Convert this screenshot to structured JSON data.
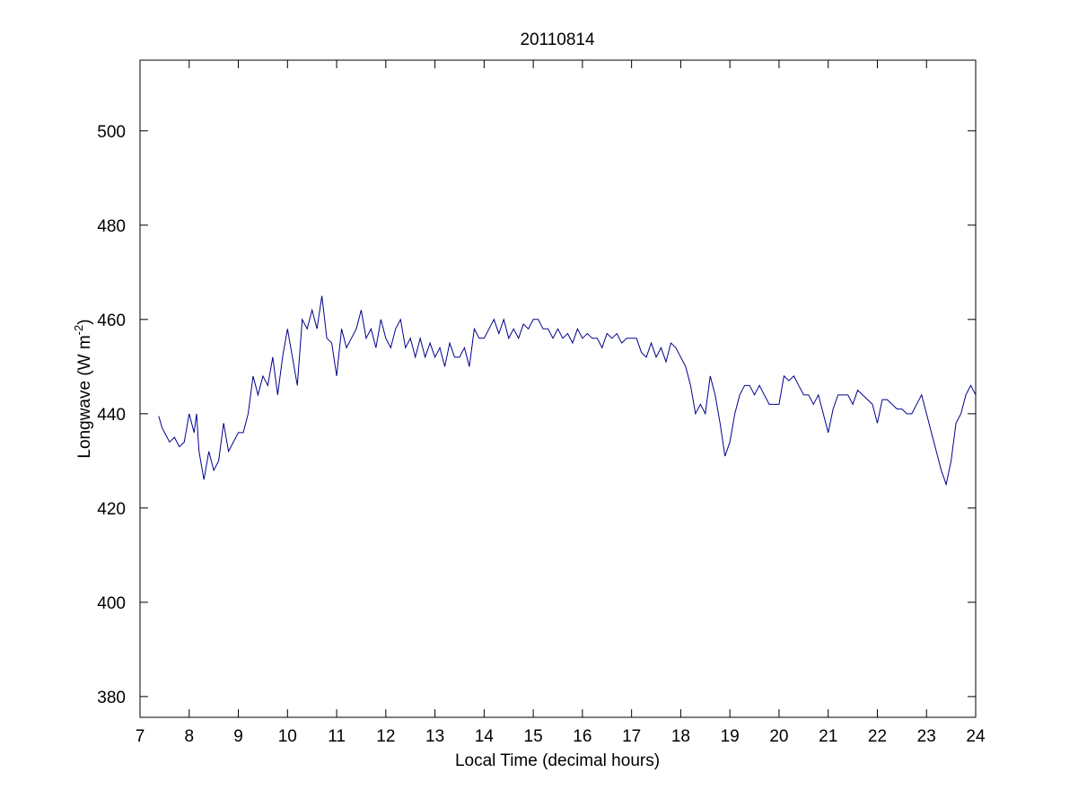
{
  "chart_data": {
    "type": "line",
    "title": "20110814",
    "xlabel": "Local Time (decimal hours)",
    "ylabel": {
      "text": "Longwave (W m",
      "superscript": "-2",
      "suffix": ")"
    },
    "xlim": [
      7,
      24
    ],
    "ylim": [
      375.6,
      515
    ],
    "xticks": [
      7,
      8,
      9,
      10,
      11,
      12,
      13,
      14,
      15,
      16,
      17,
      18,
      19,
      20,
      21,
      22,
      23,
      24
    ],
    "yticks": [
      380,
      400,
      420,
      440,
      460,
      480,
      500
    ],
    "grid": false,
    "series": [
      {
        "color": "#00008b",
        "x": [
          7.38,
          7.45,
          7.5,
          7.6,
          7.7,
          7.8,
          7.9,
          8.0,
          8.1,
          8.15,
          8.2,
          8.3,
          8.4,
          8.5,
          8.6,
          8.7,
          8.8,
          8.9,
          9.0,
          9.1,
          9.2,
          9.3,
          9.4,
          9.5,
          9.6,
          9.7,
          9.8,
          9.9,
          10.0,
          10.1,
          10.2,
          10.3,
          10.4,
          10.5,
          10.6,
          10.7,
          10.8,
          10.9,
          11.0,
          11.1,
          11.2,
          11.3,
          11.4,
          11.5,
          11.6,
          11.7,
          11.8,
          11.9,
          12.0,
          12.1,
          12.2,
          12.3,
          12.4,
          12.5,
          12.6,
          12.7,
          12.8,
          12.9,
          13.0,
          13.1,
          13.2,
          13.3,
          13.4,
          13.5,
          13.6,
          13.7,
          13.8,
          13.9,
          14.0,
          14.1,
          14.2,
          14.3,
          14.4,
          14.5,
          14.6,
          14.7,
          14.8,
          14.9,
          15.0,
          15.1,
          15.2,
          15.3,
          15.4,
          15.5,
          15.6,
          15.7,
          15.8,
          15.9,
          16.0,
          16.1,
          16.2,
          16.3,
          16.4,
          16.5,
          16.6,
          16.7,
          16.8,
          16.9,
          17.0,
          17.1,
          17.2,
          17.3,
          17.4,
          17.5,
          17.6,
          17.7,
          17.8,
          17.9,
          18.0,
          18.1,
          18.2,
          18.3,
          18.4,
          18.5,
          18.6,
          18.7,
          18.8,
          18.9,
          19.0,
          19.1,
          19.2,
          19.3,
          19.4,
          19.5,
          19.6,
          19.7,
          19.8,
          19.9,
          20.0,
          20.1,
          20.2,
          20.3,
          20.4,
          20.5,
          20.6,
          20.7,
          20.8,
          20.9,
          21.0,
          21.1,
          21.2,
          21.3,
          21.4,
          21.5,
          21.6,
          21.7,
          21.8,
          21.9,
          22.0,
          22.1,
          22.2,
          22.3,
          22.4,
          22.5,
          22.6,
          22.7,
          22.8,
          22.9,
          23.0,
          23.1,
          23.2,
          23.3,
          23.4,
          23.5,
          23.6,
          23.7,
          23.8,
          23.9,
          24.0
        ],
        "values": [
          439.5,
          437,
          436,
          434,
          435,
          433,
          434,
          440,
          436,
          440,
          432,
          426,
          432,
          428,
          430,
          438,
          432,
          434,
          436,
          436,
          440,
          448,
          444,
          448,
          446,
          452,
          444,
          452,
          458,
          452,
          446,
          460,
          458,
          462,
          458,
          465,
          456,
          455,
          448,
          458,
          454,
          456,
          458,
          462,
          456,
          458,
          454,
          460,
          456,
          454,
          458,
          460,
          454,
          456,
          452,
          456,
          452,
          455,
          452,
          454,
          450,
          455,
          452,
          452,
          454,
          450,
          458,
          456,
          456,
          458,
          460,
          457,
          460,
          456,
          458,
          456,
          459,
          458,
          460,
          460,
          458,
          458,
          456,
          458,
          456,
          457,
          455,
          458,
          456,
          457,
          456,
          456,
          454,
          457,
          456,
          457,
          455,
          456,
          456,
          456,
          453,
          452,
          455,
          452,
          454,
          451,
          455,
          454,
          452,
          450,
          446,
          440,
          442,
          440,
          448,
          444,
          438,
          431,
          434,
          440,
          444,
          446,
          446,
          444,
          446,
          444,
          442,
          442,
          442,
          448,
          447,
          448,
          446,
          444,
          444,
          442,
          444,
          440,
          436,
          441,
          444,
          444,
          444,
          442,
          445,
          444,
          443,
          442,
          438,
          443,
          443,
          442,
          441,
          441,
          440,
          440,
          442,
          444,
          440,
          436,
          432,
          428,
          425,
          430,
          438,
          440,
          444,
          446,
          444
        ]
      }
    ]
  }
}
